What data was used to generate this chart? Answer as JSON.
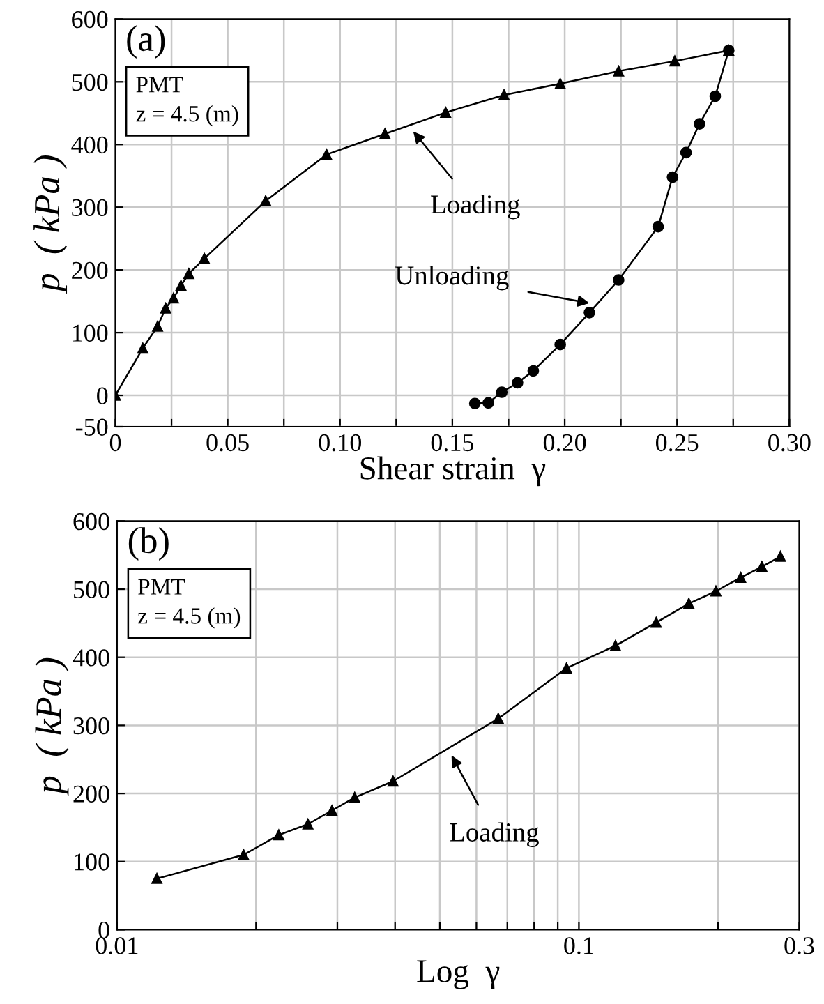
{
  "chart_data": [
    {
      "type": "line",
      "xlabel": "Shear strain  γ",
      "ylabel": "p  ( kPa )",
      "series": [
        {
          "type": "line",
          "marker": "triangle",
          "color": "#000000",
          "x": [
            0,
            0.0122,
            0.0188,
            0.0224,
            0.0259,
            0.0292,
            0.0327,
            0.0396,
            0.0669,
            0.094,
            0.12,
            0.147,
            0.173,
            0.198,
            0.224,
            0.249,
            0.273
          ],
          "values": [
            0,
            75,
            110,
            139,
            155,
            175,
            194,
            218,
            310,
            384,
            417,
            451,
            479,
            497,
            517,
            533,
            550
          ]
        },
        {
          "type": "line",
          "marker": "circle",
          "color": "#000000",
          "x": [
            0.273,
            0.267,
            0.26,
            0.254,
            0.248,
            0.2416,
            0.224,
            0.211,
            0.198,
            0.186,
            0.179,
            0.172,
            0.166,
            0.16
          ],
          "values": [
            550,
            477,
            433,
            387,
            348,
            269,
            184,
            132,
            81,
            39,
            20,
            5,
            -12,
            -13
          ]
        }
      ],
      "xlim": [
        0,
        0.3
      ],
      "xticks": [
        {
          "value": 0,
          "label": "0"
        },
        {
          "value": 0.025,
          "label": null
        },
        {
          "value": 0.05,
          "label": "0.05"
        },
        {
          "value": 0.075,
          "label": null
        },
        {
          "value": 0.1,
          "label": "0.10"
        },
        {
          "value": 0.125,
          "label": null
        },
        {
          "value": 0.15,
          "label": "0.15"
        },
        {
          "value": 0.175,
          "label": null
        },
        {
          "value": 0.2,
          "label": "0.20"
        },
        {
          "value": 0.225,
          "label": null
        },
        {
          "value": 0.25,
          "label": "0.25"
        },
        {
          "value": 0.275,
          "label": null
        },
        {
          "value": 0.3,
          "label": "0.30"
        }
      ],
      "ylim": [
        -50,
        600
      ],
      "yticks": [
        -50,
        0,
        100,
        200,
        300,
        400,
        500,
        600
      ],
      "grid": true,
      "legend": false,
      "annotations": [
        "(a)",
        "PMT\nz = 4.5 (m)",
        {
          "text": "Loading",
          "x": 0.1326,
          "y": 421
        },
        {
          "text": "Unloading",
          "x": 0.211,
          "y": 147
        }
      ]
    },
    {
      "type": "line",
      "xlabel": "Log  γ",
      "ylabel": "p  ( kPa )",
      "log": "x",
      "series": [
        {
          "type": "line",
          "marker": "triangle",
          "color": "#000000",
          "x": [
            0.0122,
            0.0188,
            0.0224,
            0.0259,
            0.0292,
            0.0327,
            0.0396,
            0.0669,
            0.094,
            0.12,
            0.147,
            0.173,
            0.198,
            0.224,
            0.249,
            0.273
          ],
          "values": [
            75,
            110,
            139,
            155,
            175,
            194,
            218,
            310,
            384,
            417,
            451,
            479,
            497,
            517,
            533,
            548
          ]
        }
      ],
      "xlim": [
        0.01,
        0.3
      ],
      "xticks": [
        0.01,
        {
          "value": 0.02,
          "label": null
        },
        {
          "value": 0.03,
          "label": null
        },
        {
          "value": 0.04,
          "label": null
        },
        {
          "value": 0.05,
          "label": null
        },
        {
          "value": 0.06,
          "label": null
        },
        {
          "value": 0.07,
          "label": null
        },
        {
          "value": 0.08,
          "label": null
        },
        {
          "value": 0.09,
          "label": null
        },
        0.1,
        {
          "value": 0.2,
          "label": null
        },
        0.3
      ],
      "ylim": [
        0,
        600
      ],
      "yticks": [
        0,
        100,
        200,
        300,
        400,
        500,
        600
      ],
      "grid": true,
      "legend": false,
      "annotations": [
        "(b)",
        "PMT\nz = 4.5 (m)",
        {
          "text": "Loading",
          "x": 0.053,
          "y": 256
        }
      ]
    }
  ]
}
